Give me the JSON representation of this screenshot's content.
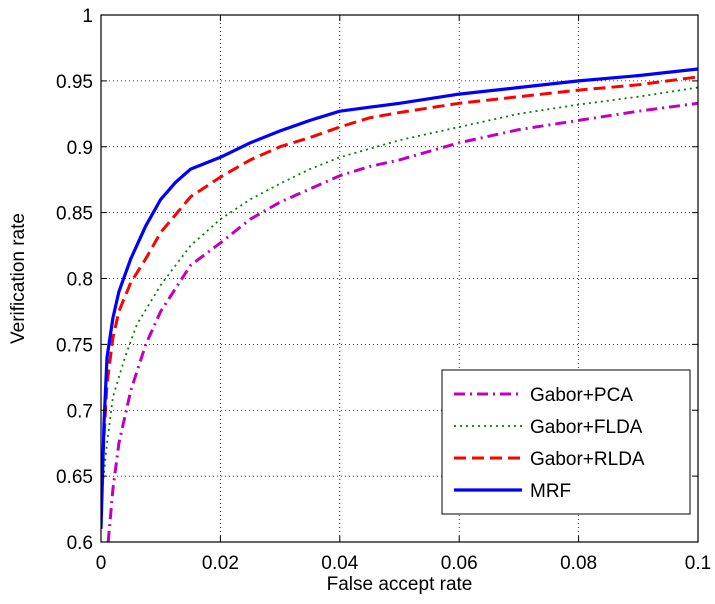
{
  "chart_data": {
    "type": "line",
    "xlabel": "False accept rate",
    "ylabel": "Verification rate",
    "xlim": [
      0,
      0.1
    ],
    "ylim": [
      0.6,
      1
    ],
    "xticks": [
      0,
      0.02,
      0.04,
      0.06,
      0.08,
      0.1
    ],
    "yticks": [
      0.6,
      0.65,
      0.7,
      0.75,
      0.8,
      0.85,
      0.9,
      0.95,
      1
    ],
    "xtick_labels": [
      "0",
      "0.02",
      "0.04",
      "0.06",
      "0.08",
      "0.1"
    ],
    "ytick_labels": [
      "0.6",
      "0.65",
      "0.7",
      "0.75",
      "0.8",
      "0.85",
      "0.9",
      "0.95",
      "1"
    ],
    "grid": true,
    "legend_position": "bottom-right",
    "series": [
      {
        "name": "Gabor+PCA",
        "color": "#bf00bf",
        "style": "dash-dot",
        "x": [
          0.0012,
          0.002,
          0.003,
          0.005,
          0.0075,
          0.01,
          0.015,
          0.02,
          0.025,
          0.03,
          0.035,
          0.04,
          0.045,
          0.05,
          0.06,
          0.07,
          0.08,
          0.09,
          0.1
        ],
        "y": [
          0.6,
          0.64,
          0.675,
          0.715,
          0.75,
          0.775,
          0.81,
          0.827,
          0.845,
          0.858,
          0.868,
          0.878,
          0.885,
          0.89,
          0.903,
          0.913,
          0.92,
          0.927,
          0.933
        ]
      },
      {
        "name": "Gabor+FLDA",
        "color": "#008000",
        "style": "dotted",
        "x": [
          0,
          0.001,
          0.002,
          0.004,
          0.006,
          0.008,
          0.01,
          0.015,
          0.02,
          0.025,
          0.03,
          0.035,
          0.04,
          0.05,
          0.06,
          0.07,
          0.08,
          0.09,
          0.1
        ],
        "y": [
          0.63,
          0.675,
          0.71,
          0.74,
          0.765,
          0.78,
          0.795,
          0.825,
          0.845,
          0.86,
          0.872,
          0.883,
          0.892,
          0.905,
          0.915,
          0.925,
          0.932,
          0.938,
          0.945
        ]
      },
      {
        "name": "Gabor+RLDA",
        "color": "#ff0000",
        "style": "dashed",
        "x": [
          0,
          0.001,
          0.002,
          0.003,
          0.005,
          0.0075,
          0.01,
          0.015,
          0.02,
          0.025,
          0.03,
          0.035,
          0.04,
          0.045,
          0.05,
          0.06,
          0.07,
          0.08,
          0.09,
          0.1
        ],
        "y": [
          0.64,
          0.72,
          0.755,
          0.775,
          0.797,
          0.815,
          0.835,
          0.862,
          0.877,
          0.89,
          0.9,
          0.907,
          0.915,
          0.922,
          0.926,
          0.933,
          0.938,
          0.943,
          0.947,
          0.953
        ]
      },
      {
        "name": "MRF",
        "color": "#0000ff",
        "style": "solid",
        "x": [
          0,
          0.0005,
          0.001,
          0.002,
          0.003,
          0.005,
          0.0075,
          0.01,
          0.0125,
          0.015,
          0.02,
          0.025,
          0.03,
          0.035,
          0.04,
          0.045,
          0.05,
          0.06,
          0.07,
          0.08,
          0.09,
          0.1
        ],
        "y": [
          0.61,
          0.69,
          0.74,
          0.77,
          0.79,
          0.815,
          0.84,
          0.86,
          0.873,
          0.883,
          0.892,
          0.903,
          0.912,
          0.92,
          0.927,
          0.93,
          0.933,
          0.94,
          0.945,
          0.95,
          0.954,
          0.959
        ]
      }
    ]
  }
}
